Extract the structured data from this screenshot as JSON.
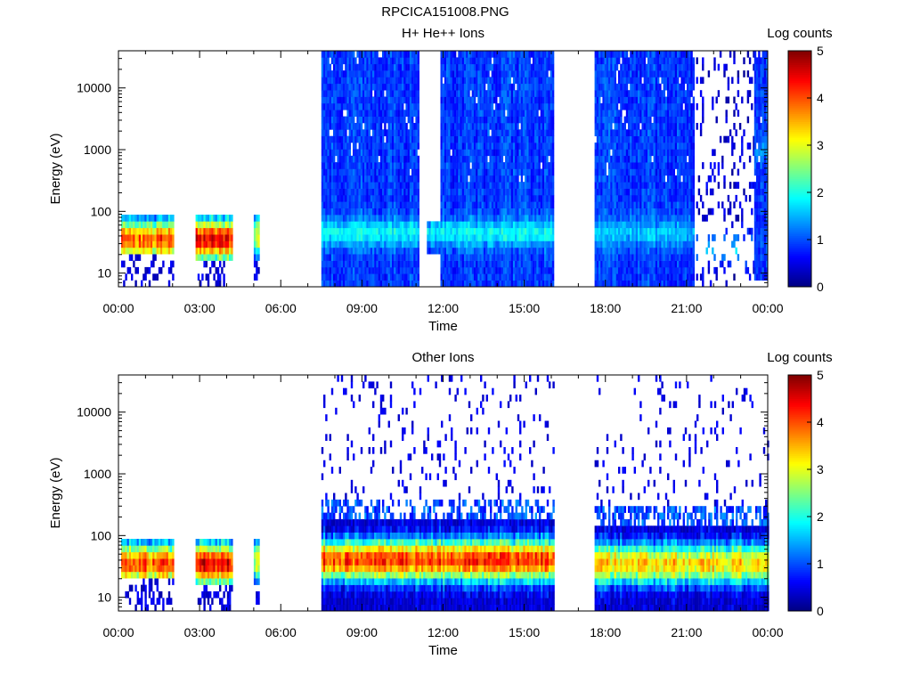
{
  "figure": {
    "title": "RPCICA151008.PNG"
  },
  "chart_data": [
    {
      "type": "heatmap",
      "title": "H+ He++ Ions",
      "xlabel": "Time",
      "ylabel": "Energy (eV)",
      "x_ticks": [
        "00:00",
        "03:00",
        "06:00",
        "09:00",
        "12:00",
        "15:00",
        "18:00",
        "21:00",
        "00:00"
      ],
      "x_range_hours": [
        0,
        24
      ],
      "y_scale": "log",
      "y_ticks": [
        10,
        100,
        1000,
        10000
      ],
      "y_tick_labels": [
        "10",
        "100",
        "1000",
        "10000"
      ],
      "ylim": [
        6,
        40000
      ],
      "colorbar": {
        "label": "Log counts",
        "range": [
          0,
          5
        ],
        "ticks": [
          "0",
          "1",
          "2",
          "3",
          "4",
          "5"
        ]
      },
      "data_intervals_hours": [
        [
          0.1,
          2.05
        ],
        [
          2.85,
          4.2
        ],
        [
          5.0,
          5.15
        ],
        [
          7.5,
          11.1
        ],
        [
          11.4,
          16.1
        ],
        [
          17.6,
          21.25
        ],
        [
          21.35,
          24.0
        ]
      ],
      "blocks": [
        {
          "t": [
            0.1,
            2.05
          ],
          "e": [
            6,
            95
          ],
          "peak_e": 35,
          "peak_level": 3.8,
          "sparse_below": 20
        },
        {
          "t": [
            2.85,
            4.2
          ],
          "e": [
            6,
            95
          ],
          "peak_e": 35,
          "peak_level": 4.3,
          "sparse_below": 18
        },
        {
          "t": [
            5.0,
            5.15
          ],
          "e": [
            8,
            95
          ],
          "peak_e": 40,
          "peak_level": 2.8,
          "sparse_below": 15
        },
        {
          "t": [
            7.5,
            11.1
          ],
          "e": [
            6,
            40000
          ],
          "peak_e": 45,
          "peak_level": 1.9,
          "floor_level": 0.9
        },
        {
          "t": [
            11.4,
            11.9
          ],
          "e": [
            20,
            70
          ],
          "peak_e": 45,
          "peak_level": 1.8,
          "floor_level": 0.8
        },
        {
          "t": [
            11.9,
            16.1
          ],
          "e": [
            6,
            40000
          ],
          "peak_e": 45,
          "peak_level": 1.9,
          "floor_level": 0.9
        },
        {
          "t": [
            17.6,
            21.25
          ],
          "e": [
            6,
            40000
          ],
          "peak_e": 45,
          "peak_level": 1.6,
          "floor_level": 0.9
        },
        {
          "t": [
            21.35,
            23.5
          ],
          "e": [
            6,
            40000
          ],
          "peak_e": 25,
          "peak_level": 1.6,
          "floor_level": 0.4,
          "sparse": true
        },
        {
          "t": [
            23.5,
            24.0
          ],
          "e": [
            8,
            40000
          ],
          "peak_e": 1000,
          "peak_level": 1.3,
          "floor_level": 0.9
        }
      ]
    },
    {
      "type": "heatmap",
      "title": "Other Ions",
      "xlabel": "Time",
      "ylabel": "Energy (eV)",
      "x_ticks": [
        "00:00",
        "03:00",
        "06:00",
        "09:00",
        "12:00",
        "15:00",
        "18:00",
        "21:00",
        "00:00"
      ],
      "x_range_hours": [
        0,
        24
      ],
      "y_scale": "log",
      "y_ticks": [
        10,
        100,
        1000,
        10000
      ],
      "y_tick_labels": [
        "10",
        "100",
        "1000",
        "10000"
      ],
      "ylim": [
        6,
        40000
      ],
      "colorbar": {
        "label": "Log counts",
        "range": [
          0,
          5
        ],
        "ticks": [
          "0",
          "1",
          "2",
          "3",
          "4",
          "5"
        ]
      },
      "data_intervals_hours": [
        [
          0.1,
          2.05
        ],
        [
          2.85,
          4.2
        ],
        [
          5.0,
          5.15
        ],
        [
          7.5,
          16.1
        ],
        [
          17.6,
          24.0
        ]
      ],
      "blocks": [
        {
          "t": [
            0.1,
            2.05
          ],
          "e": [
            6,
            95
          ],
          "peak_e": 35,
          "peak_level": 3.8,
          "sparse_below": 20
        },
        {
          "t": [
            2.85,
            4.2
          ],
          "e": [
            6,
            95
          ],
          "peak_e": 35,
          "peak_level": 4.3,
          "sparse_below": 18
        },
        {
          "t": [
            5.0,
            5.15
          ],
          "e": [
            8,
            95
          ],
          "peak_e": 40,
          "peak_level": 2.8,
          "sparse_below": 15
        },
        {
          "t": [
            7.5,
            16.1
          ],
          "e": [
            6,
            40000
          ],
          "peak_e": 40,
          "peak_level": 4.0,
          "sparse_above": 400
        },
        {
          "t": [
            17.6,
            24.0
          ],
          "e": [
            6,
            40000
          ],
          "peak_e": 35,
          "peak_level": 3.2,
          "sparse_above": 300
        }
      ]
    }
  ]
}
